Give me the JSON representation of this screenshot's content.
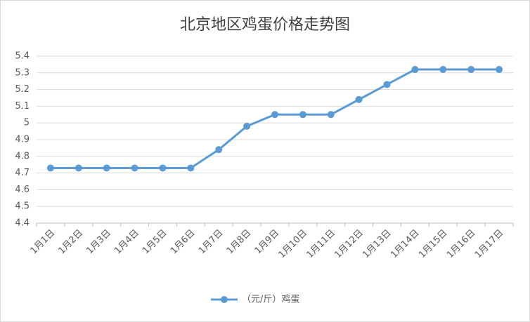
{
  "chart_data": {
    "type": "line",
    "title": "北京地区鸡蛋价格走势图",
    "categories": [
      "1月1日",
      "1月2日",
      "1月3日",
      "1月4日",
      "1月5日",
      "1月6日",
      "1月7日",
      "1月8日",
      "1月9日",
      "1月10日",
      "1月11日",
      "1月12日",
      "1月13日",
      "1月14日",
      "1月15日",
      "1月16日",
      "1月17日"
    ],
    "series": [
      {
        "name": "（元/斤）鸡蛋",
        "color": "#5b9bd5",
        "values": [
          4.73,
          4.73,
          4.73,
          4.73,
          4.73,
          4.73,
          4.84,
          4.98,
          5.05,
          5.05,
          5.05,
          5.14,
          5.23,
          5.32,
          5.32,
          5.32,
          5.32
        ]
      }
    ],
    "ylim": [
      4.4,
      5.4
    ],
    "yticks": [
      4.4,
      4.5,
      4.6,
      4.7,
      4.8,
      4.9,
      5,
      5.1,
      5.2,
      5.3,
      5.4
    ],
    "grid": true,
    "legend": "bottom"
  }
}
